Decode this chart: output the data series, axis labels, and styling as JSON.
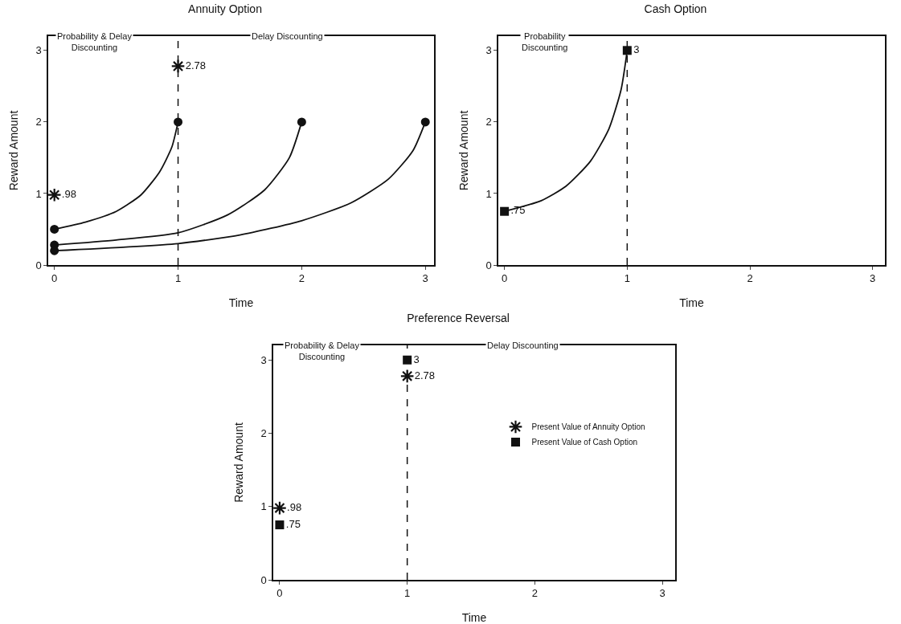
{
  "chart_data": [
    {
      "type": "line",
      "title": "Annuity Option",
      "xlabel": "Time",
      "ylabel": "Reward Amount",
      "xlim": [
        -0.05,
        3.07
      ],
      "ylim": [
        0,
        3.2
      ],
      "xticks": [
        0,
        1,
        2,
        3
      ],
      "yticks": [
        0,
        1,
        2,
        3
      ],
      "grid": false,
      "legend": false,
      "line_style": "solid",
      "marker": "none",
      "annotations": [
        "Probability & Delay Discounting",
        "Delay Discounting"
      ],
      "ref_lines": [
        {
          "axis": "x",
          "value": 1,
          "color": "#111111",
          "line_style": "dashed"
        }
      ],
      "series": [
        {
          "color": "#111111",
          "x": [
            0,
            0.25,
            0.5,
            0.7,
            0.85,
            0.95,
            1
          ],
          "values": [
            0.5,
            0.6,
            0.75,
            0.98,
            1.3,
            1.65,
            2
          ]
        },
        {
          "color": "#111111",
          "x": [
            0,
            0.5,
            1,
            1.4,
            1.7,
            1.9,
            2
          ],
          "values": [
            0.28,
            0.35,
            0.45,
            0.7,
            1.05,
            1.5,
            2
          ]
        },
        {
          "color": "#111111",
          "x": [
            0,
            1,
            1.5,
            2,
            2.4,
            2.7,
            2.9,
            3
          ],
          "values": [
            0.2,
            0.3,
            0.42,
            0.62,
            0.87,
            1.2,
            1.6,
            2
          ]
        },
        {
          "type": "scatter",
          "marker": "circle",
          "color": "#111111",
          "x": [
            0,
            0,
            0,
            1,
            2,
            3
          ],
          "values": [
            0.5,
            0.28,
            0.2,
            2,
            2,
            2
          ]
        },
        {
          "type": "scatter",
          "marker": "cross",
          "color": "#111111",
          "x": [
            0,
            1
          ],
          "values": [
            0.98,
            2.78
          ],
          "value_labels": [
            ".98",
            "2.78"
          ]
        }
      ]
    },
    {
      "type": "line",
      "title": "Cash Option",
      "xlabel": "Time",
      "ylabel": "Reward Amount",
      "xlim": [
        -0.05,
        3.1
      ],
      "ylim": [
        0,
        3.2
      ],
      "xticks": [
        0,
        1,
        2,
        3
      ],
      "yticks": [
        0,
        1,
        2,
        3
      ],
      "grid": false,
      "legend": false,
      "line_style": "solid",
      "marker": "none",
      "annotations": [
        "Probability Discounting"
      ],
      "ref_lines": [
        {
          "axis": "x",
          "value": 1,
          "color": "#111111",
          "line_style": "dashed"
        }
      ],
      "series": [
        {
          "color": "#111111",
          "x": [
            0,
            0.3,
            0.5,
            0.7,
            0.85,
            0.95,
            1
          ],
          "values": [
            0.75,
            0.9,
            1.1,
            1.45,
            1.9,
            2.45,
            3
          ]
        },
        {
          "type": "scatter",
          "marker": "square",
          "color": "#111111",
          "x": [
            0,
            1
          ],
          "values": [
            0.75,
            3
          ],
          "value_labels": [
            ".75",
            "3"
          ]
        }
      ]
    },
    {
      "type": "scatter",
      "title": "Preference Reversal",
      "xlabel": "Time",
      "ylabel": "Reward Amount",
      "xlim": [
        -0.05,
        3.1
      ],
      "ylim": [
        0,
        3.2
      ],
      "xticks": [
        0,
        1,
        2,
        3
      ],
      "yticks": [
        0,
        1,
        2,
        3
      ],
      "grid": false,
      "legend": "right",
      "annotations": [
        "Probability & Delay Discounting",
        "Delay Discounting"
      ],
      "ref_lines": [
        {
          "axis": "x",
          "value": 1,
          "color": "#111111",
          "line_style": "dashed"
        }
      ],
      "series": [
        {
          "name": "Present Value of Annuity Option",
          "marker": "cross",
          "color": "#111111",
          "x": [
            0,
            1
          ],
          "values": [
            0.98,
            2.78
          ],
          "value_labels": [
            ".98",
            "2.78"
          ]
        },
        {
          "name": "Present Value of Cash Option",
          "marker": "square",
          "color": "#111111",
          "x": [
            0,
            1
          ],
          "values": [
            0.75,
            3
          ],
          "value_labels": [
            ".75",
            "3"
          ]
        }
      ]
    }
  ]
}
